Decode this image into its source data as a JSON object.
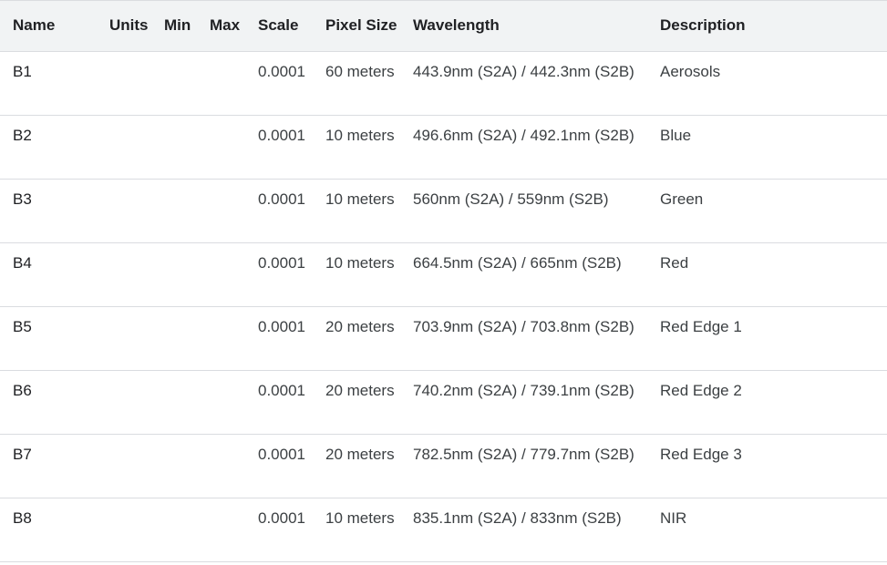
{
  "table": {
    "headers": {
      "name": "Name",
      "units": "Units",
      "min": "Min",
      "max": "Max",
      "scale": "Scale",
      "pixel_size": "Pixel Size",
      "wavelength": "Wavelength",
      "description": "Description"
    },
    "rows": [
      {
        "name": "B1",
        "units": "",
        "min": "",
        "max": "",
        "scale": "0.0001",
        "pixel_size": "60 meters",
        "wavelength": "443.9nm (S2A) / 442.3nm (S2B)",
        "description": "Aerosols"
      },
      {
        "name": "B2",
        "units": "",
        "min": "",
        "max": "",
        "scale": "0.0001",
        "pixel_size": "10 meters",
        "wavelength": "496.6nm (S2A) / 492.1nm (S2B)",
        "description": "Blue"
      },
      {
        "name": "B3",
        "units": "",
        "min": "",
        "max": "",
        "scale": "0.0001",
        "pixel_size": "10 meters",
        "wavelength": "560nm (S2A) / 559nm (S2B)",
        "description": "Green"
      },
      {
        "name": "B4",
        "units": "",
        "min": "",
        "max": "",
        "scale": "0.0001",
        "pixel_size": "10 meters",
        "wavelength": "664.5nm (S2A) / 665nm (S2B)",
        "description": "Red"
      },
      {
        "name": "B5",
        "units": "",
        "min": "",
        "max": "",
        "scale": "0.0001",
        "pixel_size": "20 meters",
        "wavelength": "703.9nm (S2A) / 703.8nm (S2B)",
        "description": "Red Edge 1"
      },
      {
        "name": "B6",
        "units": "",
        "min": "",
        "max": "",
        "scale": "0.0001",
        "pixel_size": "20 meters",
        "wavelength": "740.2nm (S2A) / 739.1nm (S2B)",
        "description": "Red Edge 2"
      },
      {
        "name": "B7",
        "units": "",
        "min": "",
        "max": "",
        "scale": "0.0001",
        "pixel_size": "20 meters",
        "wavelength": "782.5nm (S2A) / 779.7nm (S2B)",
        "description": "Red Edge 3"
      },
      {
        "name": "B8",
        "units": "",
        "min": "",
        "max": "",
        "scale": "0.0001",
        "pixel_size": "10 meters",
        "wavelength": "835.1nm (S2A) / 833nm (S2B)",
        "description": "NIR"
      }
    ]
  }
}
